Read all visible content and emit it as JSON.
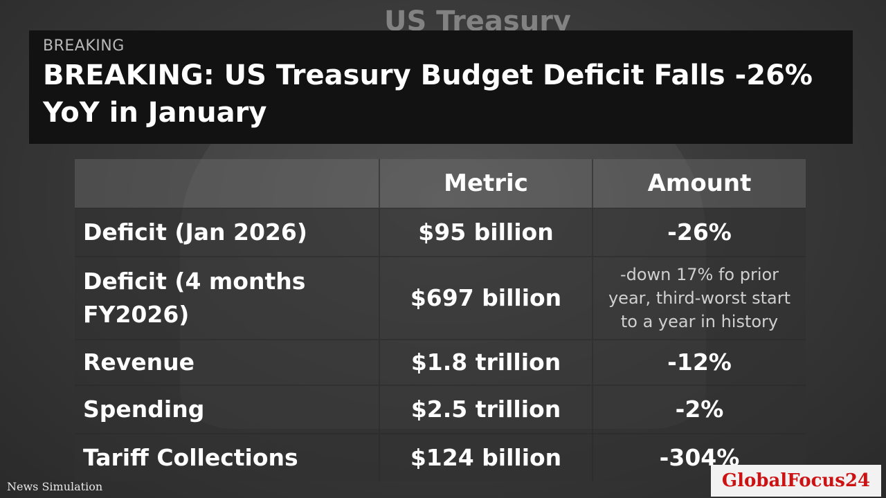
{
  "background": {
    "title_text": "US Treasury"
  },
  "headline": {
    "kicker": "BREAKING",
    "title": "BREAKING: US Treasury Budget Deficit Falls -26% YoY in January"
  },
  "table": {
    "headers": [
      "",
      "Metric",
      "Amount"
    ],
    "rows": [
      {
        "label": "Deficit (Jan 2026)",
        "metric": "$95 billion",
        "amount": "-26%"
      },
      {
        "label": "Deficit (4 months FY2026)",
        "metric": "$697 billion",
        "amount": "-down 17% fo prior year, third-worst start to a year in history"
      },
      {
        "label": "Revenue",
        "metric": "$1.8 trillion",
        "amount": "-12%"
      },
      {
        "label": "Spending",
        "metric": "$2.5 trillion",
        "amount": "-2%"
      },
      {
        "label": "Tariff Collections",
        "metric": "$124 billion",
        "amount": "-304%"
      }
    ]
  },
  "footer": {
    "watermark": "News Simulation",
    "brand": "GlobalFocus24"
  },
  "colors": {
    "brand_red": "#cc1212",
    "headline_bg": "#121212"
  }
}
